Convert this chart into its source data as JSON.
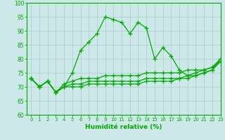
{
  "xlabel": "Humidité relative (%)",
  "xlim": [
    -0.5,
    23
  ],
  "ylim": [
    60,
    100
  ],
  "xticks": [
    0,
    1,
    2,
    3,
    4,
    5,
    6,
    7,
    8,
    9,
    10,
    11,
    12,
    13,
    14,
    15,
    16,
    17,
    18,
    19,
    20,
    21,
    22,
    23
  ],
  "yticks": [
    60,
    65,
    70,
    75,
    80,
    85,
    90,
    95,
    100
  ],
  "background_color": "#cce8e8",
  "grid_color": "#aacccc",
  "line_color": "#00aa00",
  "lines": [
    [
      73,
      70,
      72,
      68,
      70,
      75,
      83,
      86,
      89,
      95,
      94,
      93,
      89,
      93,
      91,
      80,
      84,
      81,
      76,
      74,
      75,
      76,
      77,
      80
    ],
    [
      73,
      70,
      72,
      68,
      71,
      72,
      73,
      73,
      73,
      74,
      74,
      74,
      74,
      74,
      75,
      75,
      75,
      75,
      75,
      76,
      76,
      76,
      77,
      79
    ],
    [
      73,
      70,
      72,
      68,
      70,
      71,
      71,
      72,
      72,
      72,
      72,
      72,
      72,
      72,
      73,
      73,
      73,
      73,
      73,
      74,
      74,
      75,
      76,
      79
    ],
    [
      73,
      70,
      72,
      68,
      70,
      70,
      70,
      71,
      71,
      71,
      71,
      71,
      71,
      71,
      72,
      72,
      72,
      72,
      73,
      73,
      74,
      75,
      76,
      80
    ]
  ]
}
